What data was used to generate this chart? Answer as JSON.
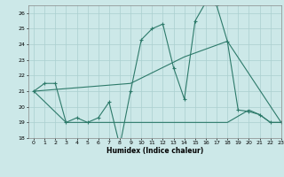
{
  "title": "",
  "xlabel": "Humidex (Indice chaleur)",
  "bg_color": "#cce8e8",
  "grid_color": "#aacfcf",
  "line_color": "#2d7a6a",
  "ylim": [
    18,
    26.5
  ],
  "xlim": [
    -0.5,
    23
  ],
  "yticks": [
    18,
    19,
    20,
    21,
    22,
    23,
    24,
    25,
    26
  ],
  "xticks": [
    0,
    1,
    2,
    3,
    4,
    5,
    6,
    7,
    8,
    9,
    10,
    11,
    12,
    13,
    14,
    15,
    16,
    17,
    18,
    19,
    20,
    21,
    22,
    23
  ],
  "line1_x": [
    0,
    1,
    2,
    3,
    4,
    5,
    6,
    7,
    8,
    9,
    10,
    11,
    12,
    13,
    14,
    15,
    16,
    17,
    18,
    19,
    20,
    21,
    22,
    23
  ],
  "line1_y": [
    21.0,
    21.5,
    21.5,
    19.0,
    19.3,
    19.0,
    19.3,
    20.3,
    17.5,
    21.0,
    24.3,
    25.0,
    25.3,
    22.5,
    20.5,
    25.5,
    26.7,
    26.5,
    24.2,
    19.8,
    19.7,
    19.5,
    19.0,
    19.0
  ],
  "line2_x": [
    0,
    9,
    14,
    18,
    23
  ],
  "line2_y": [
    21.0,
    21.5,
    23.2,
    24.2,
    19.0
  ],
  "line3_x": [
    0,
    3,
    9,
    14,
    18,
    20,
    21,
    22,
    23
  ],
  "line3_y": [
    21.0,
    19.0,
    19.0,
    19.0,
    19.0,
    19.8,
    19.5,
    19.0,
    19.0
  ]
}
